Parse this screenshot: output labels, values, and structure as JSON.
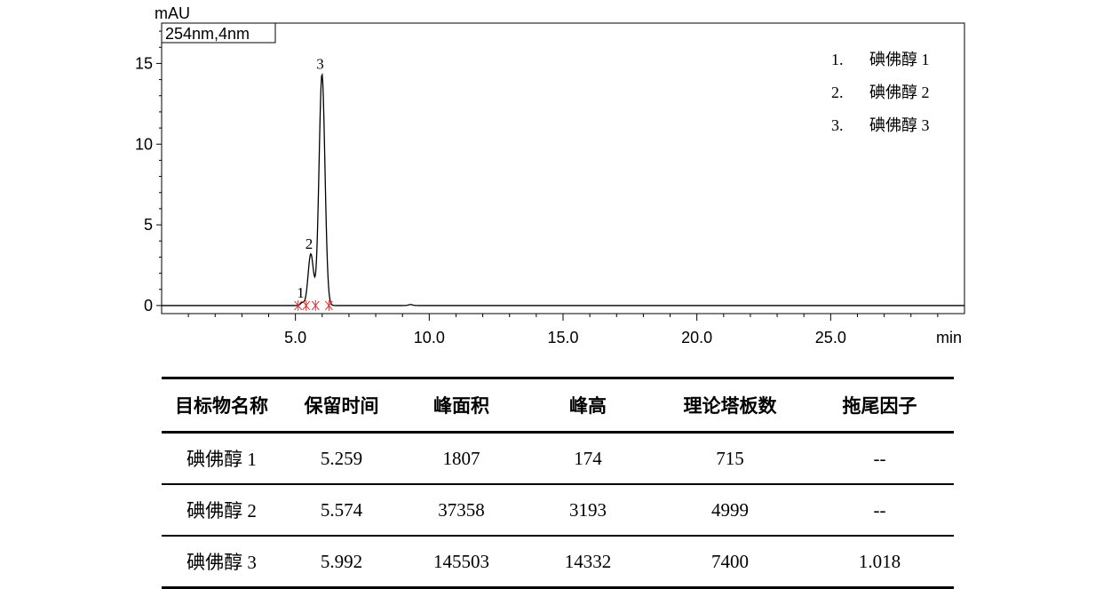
{
  "chart_data": {
    "type": "line",
    "y_unit": "mAU",
    "x_unit": "min",
    "wavelength_label": "254nm,4nm",
    "xlim": [
      0.0,
      30.0
    ],
    "ylim": [
      -0.5,
      17.5
    ],
    "x_ticks": [
      {
        "value": 5,
        "label": "5.0"
      },
      {
        "value": 10,
        "label": "10.0"
      },
      {
        "value": 15,
        "label": "15.0"
      },
      {
        "value": 20,
        "label": "20.0"
      },
      {
        "value": 25,
        "label": "25.0"
      }
    ],
    "y_ticks": [
      {
        "value": 0,
        "label": "0"
      },
      {
        "value": 5,
        "label": "5"
      },
      {
        "value": 10,
        "label": "10"
      },
      {
        "value": 15,
        "label": "15"
      }
    ],
    "peaks": [
      {
        "label": "1",
        "retention_time": 5.259,
        "height": 0.174,
        "width": 0.07
      },
      {
        "label": "2",
        "retention_time": 5.574,
        "height": 3.193,
        "width": 0.1
      },
      {
        "label": "3",
        "retention_time": 5.992,
        "height": 14.332,
        "width": 0.11
      }
    ],
    "minor_bumps": [
      {
        "retention_time": 9.3,
        "height": 0.06,
        "width": 0.08
      }
    ],
    "legend": [
      {
        "num": "1.",
        "name": "碘佛醇 1"
      },
      {
        "num": "2.",
        "name": "碘佛醇 2"
      },
      {
        "num": "3.",
        "name": "碘佛醇 3"
      }
    ],
    "legend_position": "top-right",
    "grid": false,
    "colors": {
      "trace": "#000000",
      "integration_marks": "#e03030"
    }
  },
  "table": {
    "headers": [
      "目标物名称",
      "保留时间",
      "峰面积",
      "峰高",
      "理论塔板数",
      "拖尾因子"
    ],
    "rows": [
      [
        "碘佛醇 1",
        "5.259",
        "1807",
        "174",
        "715",
        "--"
      ],
      [
        "碘佛醇 2",
        "5.574",
        "37358",
        "3193",
        "4999",
        "--"
      ],
      [
        "碘佛醇 3",
        "5.992",
        "145503",
        "14332",
        "7400",
        "1.018"
      ]
    ]
  }
}
